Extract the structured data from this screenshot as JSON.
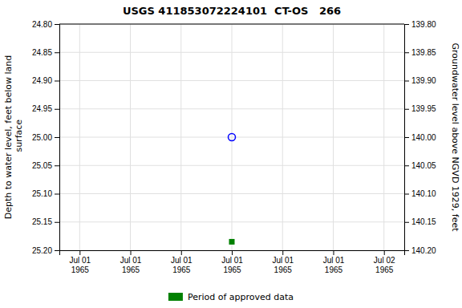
{
  "chart_data": {
    "type": "scatter",
    "title": "USGS 411853072224101  CT-OS   266",
    "x_label": null,
    "y_label": "Depth to water level, feet below land\n surface",
    "y2_label": "Groundwater level above NGVD 1929, feet",
    "categories": [
      "Jul 01\n1965",
      "Jul 01\n1965",
      "Jul 01\n1965",
      "Jul 01\n1965",
      "Jul 01\n1965",
      "Jul 01\n1965",
      "Jul 02\n1965"
    ],
    "series": [
      {
        "color": "#0000ff",
        "marker": "circle",
        "values": [
          null,
          null,
          null,
          25.0,
          null,
          null,
          null
        ]
      },
      {
        "name": "Period of approved data",
        "color": "#008000",
        "marker": "square",
        "values": [
          null,
          null,
          null,
          25.185,
          null,
          null,
          null
        ]
      }
    ],
    "ylim": [
      25.2,
      24.8
    ],
    "yticks": [
      {
        "value": 24.8,
        "label": "24.80"
      },
      {
        "value": 24.85,
        "label": "24.85"
      },
      {
        "value": 24.9,
        "label": "24.90"
      },
      {
        "value": 24.95,
        "label": "24.95"
      },
      {
        "value": 25.0,
        "label": "25.00"
      },
      {
        "value": 25.05,
        "label": "25.05"
      },
      {
        "value": 25.1,
        "label": "25.10"
      },
      {
        "value": 25.15,
        "label": "25.15"
      },
      {
        "value": 25.2,
        "label": "25.20"
      }
    ],
    "y2lim": [
      140.2,
      139.8
    ],
    "y2ticks": [
      {
        "value": 140.2,
        "label": "140.20"
      },
      {
        "value": 140.15,
        "label": "140.15"
      },
      {
        "value": 140.1,
        "label": "140.10"
      },
      {
        "value": 140.05,
        "label": "140.05"
      },
      {
        "value": 140.0,
        "label": "140.00"
      },
      {
        "value": 139.95,
        "label": "139.95"
      },
      {
        "value": 139.9,
        "label": "139.90"
      },
      {
        "value": 139.85,
        "label": "139.85"
      },
      {
        "value": 139.8,
        "label": "139.80"
      }
    ],
    "grid": true,
    "legend": "bottom"
  }
}
